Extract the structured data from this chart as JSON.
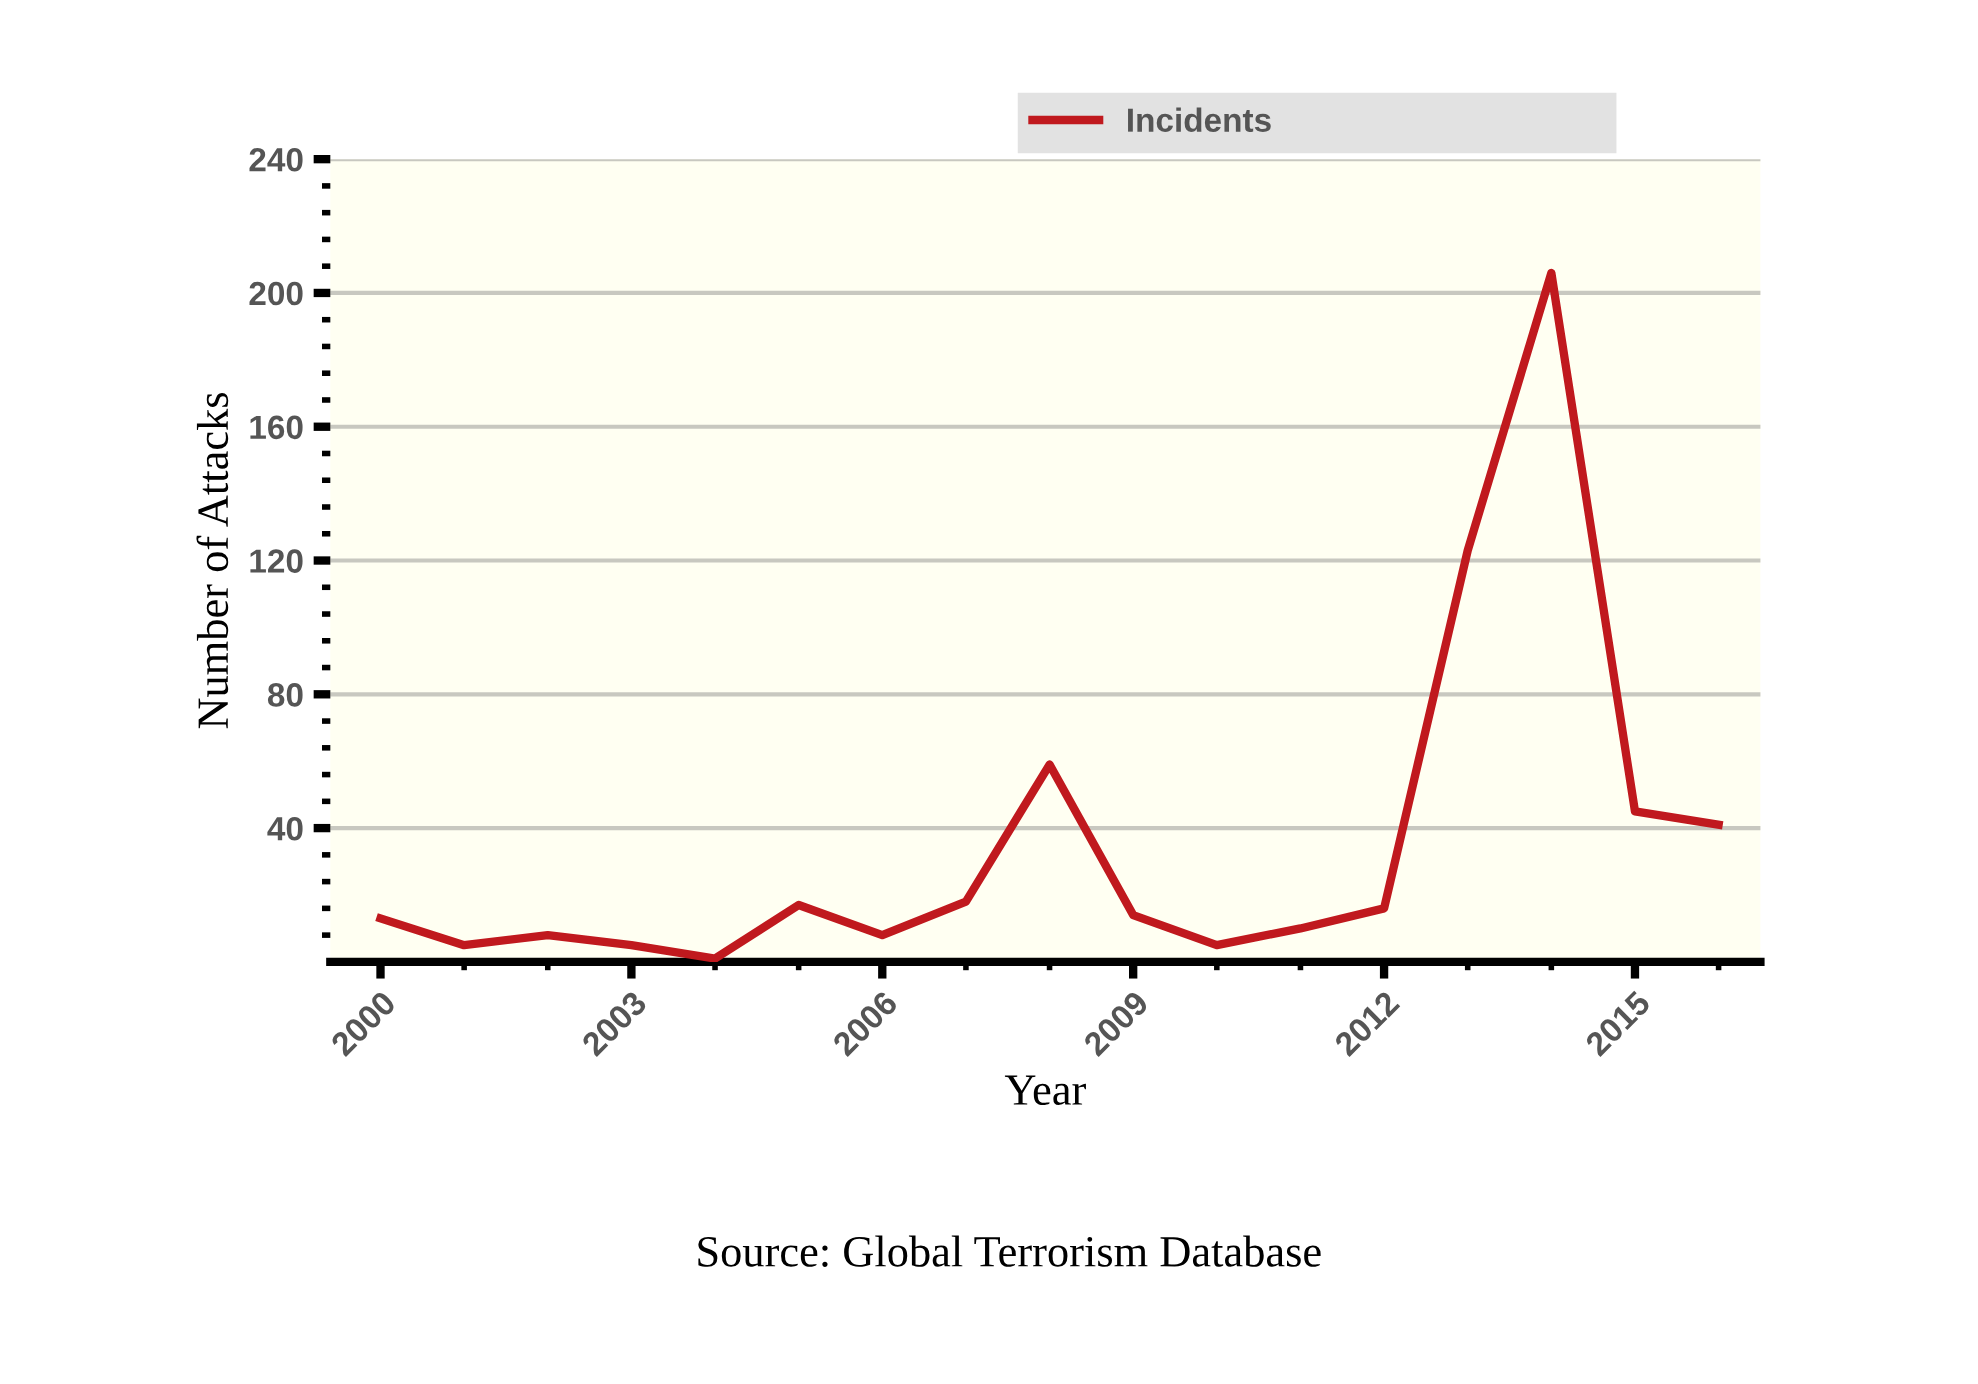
{
  "chart_data": {
    "type": "line",
    "xlabel": "Year",
    "ylabel": "Number of Attacks",
    "annotations": [
      "Source: Global Terrorism Database"
    ],
    "x": [
      2000,
      2001,
      2002,
      2003,
      2004,
      2005,
      2006,
      2007,
      2008,
      2009,
      2010,
      2011,
      2012,
      2013,
      2014,
      2015,
      2016
    ],
    "series": [
      {
        "name": "Incidents",
        "color": "#c0191e",
        "values": [
          13,
          5,
          8,
          5,
          1,
          17,
          8,
          18,
          59,
          14,
          5,
          10,
          16,
          123,
          206,
          45,
          41
        ]
      }
    ],
    "xlim": [
      1999.4,
      2016.5
    ],
    "xticks": [
      2000,
      {
        "value": 2001,
        "label": null
      },
      {
        "value": 2002,
        "label": null
      },
      2003,
      {
        "value": 2004,
        "label": null
      },
      {
        "value": 2005,
        "label": null
      },
      2006,
      {
        "value": 2007,
        "label": null
      },
      {
        "value": 2008,
        "label": null
      },
      2009,
      {
        "value": 2010,
        "label": null
      },
      {
        "value": 2011,
        "label": null
      },
      2012,
      {
        "value": 2013,
        "label": null
      },
      {
        "value": 2014,
        "label": null
      },
      2015,
      {
        "value": 2016,
        "label": null
      }
    ],
    "ylim": [
      0,
      240
    ],
    "yticks": [
      {
        "value": 8,
        "label": null
      },
      {
        "value": 16,
        "label": null
      },
      {
        "value": 24,
        "label": null
      },
      {
        "value": 32,
        "label": null
      },
      40,
      {
        "value": 48,
        "label": null
      },
      {
        "value": 56,
        "label": null
      },
      {
        "value": 64,
        "label": null
      },
      {
        "value": 72,
        "label": null
      },
      80,
      {
        "value": 88,
        "label": null
      },
      {
        "value": 96,
        "label": null
      },
      {
        "value": 104,
        "label": null
      },
      {
        "value": 112,
        "label": null
      },
      120,
      {
        "value": 128,
        "label": null
      },
      {
        "value": 136,
        "label": null
      },
      {
        "value": 144,
        "label": null
      },
      {
        "value": 152,
        "label": null
      },
      160,
      {
        "value": 168,
        "label": null
      },
      {
        "value": 176,
        "label": null
      },
      {
        "value": 184,
        "label": null
      },
      {
        "value": 192,
        "label": null
      },
      200,
      {
        "value": 208,
        "label": null
      },
      {
        "value": 216,
        "label": null
      },
      {
        "value": 224,
        "label": null
      },
      {
        "value": 232,
        "label": null
      },
      240
    ],
    "grid": "y",
    "legend": "top right",
    "marker": "none",
    "line_style": "solid"
  }
}
